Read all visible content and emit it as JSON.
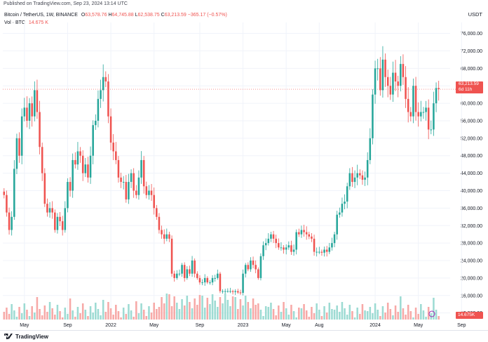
{
  "publish_line": "Published on TradingView.com, Sep 23, 2024 13:14 UTC",
  "legend": {
    "symbol": "Bitcoin / TetherUS, 1W, BINANCE",
    "open_label": "O",
    "open": "63,578.76",
    "high_label": "H",
    "high": "64,745.88",
    "low_label": "L",
    "low": "62,538.75",
    "close_label": "C",
    "close": "63,213.59",
    "change": "−365.17 (−0.57%)",
    "vol_label": "Vol · BTC",
    "vol": "14.675 K"
  },
  "currency": "USDT",
  "price_badge": {
    "price": "63,213.59",
    "countdown": "6d 11h"
  },
  "vol_badge": "14.675K",
  "brand": "TradingView",
  "colors": {
    "up": "#26a69a",
    "down": "#ef5350",
    "up_vol": "#9ddbd3",
    "down_vol": "#f7a9a7",
    "grid": "#f0f3fa",
    "text": "#131722"
  },
  "chart_data": {
    "type": "candlestick",
    "title": "Bitcoin / TetherUS, 1W, BINANCE",
    "y_ticks": [
      12000,
      16000,
      20000,
      24000,
      28000,
      32000,
      36000,
      40000,
      44000,
      48000,
      52000,
      56000,
      60000,
      64000,
      68000,
      72000,
      76000
    ],
    "y_tick_labels": [
      "12,000.00",
      "16,000.00",
      "20,000.00",
      "24,000.00",
      "28,000.00",
      "32,000.00",
      "36,000.00",
      "40,000.00",
      "44,000.00",
      "48,000.00",
      "52,000.00",
      "56,000.00",
      "60,000.00",
      "64,000.00",
      "68,000.00",
      "72,000.00",
      "76,000.00"
    ],
    "ylim": [
      10500,
      78500
    ],
    "x_ticks": [
      {
        "label": "May",
        "index": 8
      },
      {
        "label": "Sep",
        "index": 25
      },
      {
        "label": "2022",
        "index": 42
      },
      {
        "label": "May",
        "index": 59
      },
      {
        "label": "Sep",
        "index": 77
      },
      {
        "label": "2023",
        "index": 94
      },
      {
        "label": "May",
        "index": 111
      },
      {
        "label": "Aug",
        "index": 124
      },
      {
        "label": "2024",
        "index": 146
      },
      {
        "label": "May",
        "index": 163
      },
      {
        "label": "Sep",
        "index": 180
      }
    ],
    "closes": [
      39000,
      35000,
      31000,
      34000,
      45000,
      52000,
      48000,
      57000,
      59000,
      56000,
      60000,
      57000,
      63000,
      58000,
      50000,
      44000,
      37000,
      35000,
      36000,
      35000,
      31000,
      34000,
      33000,
      31000,
      36000,
      42000,
      40000,
      47000,
      46000,
      49000,
      48000,
      44000,
      46000,
      43000,
      48000,
      55000,
      56000,
      61000,
      63000,
      66000,
      65000,
      57000,
      51000,
      49000,
      47000,
      43000,
      42000,
      42000,
      38000,
      42000,
      44000,
      40000,
      39000,
      43000,
      47000,
      41000,
      39000,
      40000,
      39000,
      36000,
      34000,
      31000,
      30000,
      29000,
      30000,
      29000,
      21000,
      20000,
      21000,
      21000,
      23000,
      20000,
      22000,
      21000,
      24000,
      21000,
      20000,
      19000,
      19000,
      20000,
      19000,
      19000,
      20000,
      20000,
      21000,
      17000,
      17000,
      17000,
      17000,
      17000,
      16800,
      17000,
      16700,
      16600,
      21000,
      23000,
      22000,
      24000,
      23000,
      22000,
      20000,
      25000,
      27500,
      28000,
      29000,
      30000,
      29000,
      28000,
      27000,
      27000,
      26500,
      27000,
      27500,
      26000,
      26500,
      30500,
      30000,
      31000,
      30500,
      30000,
      29500,
      29000,
      26000,
      26000,
      26000,
      25800,
      26500,
      26000,
      27000,
      28000,
      30000,
      34500,
      35000,
      37000,
      37500,
      41000,
      44000,
      42000,
      43000,
      44000,
      43500,
      42500,
      43000,
      47000,
      52000,
      62000,
      68000,
      68000,
      63000,
      70000,
      66000,
      64000,
      62000,
      67000,
      65000,
      64000,
      69000,
      66000,
      61000,
      58000,
      57000,
      64000,
      58000,
      57000,
      58000,
      58000,
      59000,
      54000,
      54000,
      60000,
      63500,
      63213
    ],
    "volumes_note": "Weekly volume histogram at bottom of chart"
  }
}
